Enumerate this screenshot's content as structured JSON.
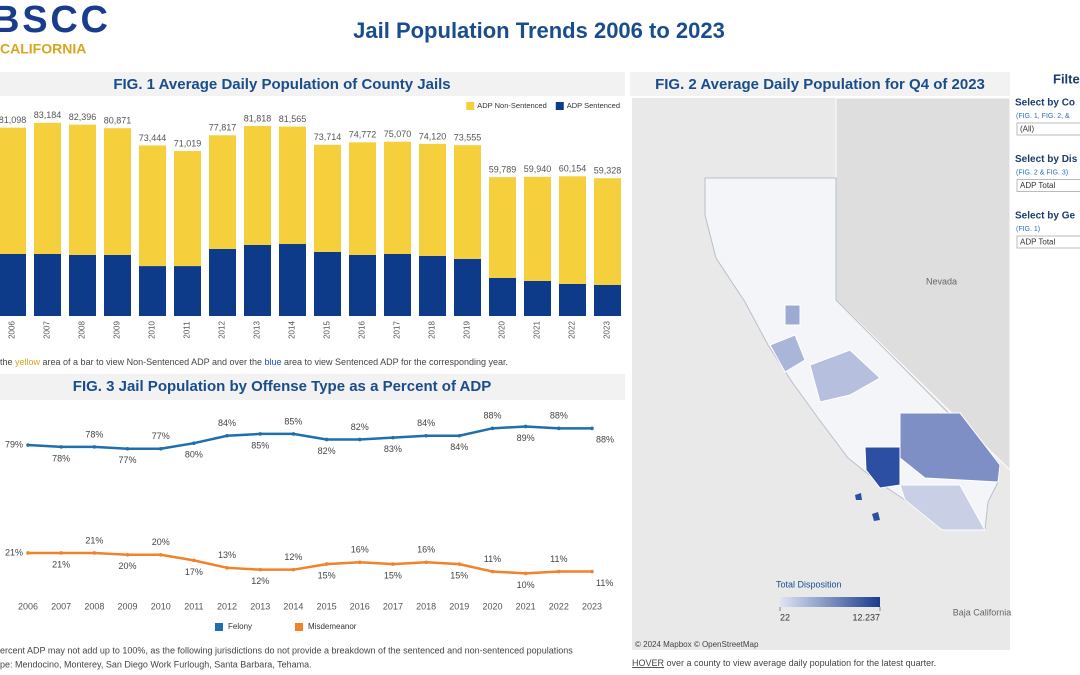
{
  "header": {
    "logo": "BSCC",
    "logo_sub": "CALIFORNIA",
    "title": "Jail Population Trends 2006 to 2023"
  },
  "chart_data": [
    {
      "type": "bar",
      "stacked": true,
      "title": "FIG. 1 Average Daily Population of County Jails",
      "categories": [
        "2006",
        "2007",
        "2008",
        "2009",
        "2010",
        "2011",
        "2012",
        "2013",
        "2014",
        "2015",
        "2016",
        "2017",
        "2018",
        "2019",
        "2020",
        "2021",
        "2022",
        "2023"
      ],
      "series": [
        {
          "name": "ADP Non-Sentenced",
          "color": "#f5cf3c",
          "values": [
            54398,
            56484,
            56096,
            54571,
            51944,
            49519,
            48917,
            51218,
            50565,
            46114,
            48472,
            48370,
            48220,
            48955,
            43389,
            44840,
            46354,
            45928
          ]
        },
        {
          "name": "ADP Sentenced",
          "color": "#0e3a8a",
          "values": [
            26700,
            26700,
            26300,
            26300,
            21500,
            21500,
            28900,
            30600,
            31000,
            27600,
            26300,
            26700,
            25900,
            24600,
            16400,
            15100,
            13800,
            13400
          ]
        }
      ],
      "totals": [
        81098,
        83184,
        82396,
        80871,
        73444,
        71019,
        77817,
        81818,
        81565,
        73714,
        74772,
        75070,
        74120,
        73555,
        59789,
        59940,
        60154,
        59328
      ],
      "total_labels": [
        "81,098",
        "83,184",
        "82,396",
        "80,871",
        "73,444",
        "71,019",
        "77,817",
        "81,818",
        "81,565",
        "73,714",
        "74,772",
        "75,070",
        "74,120",
        "73,555",
        "59,789",
        "59,940",
        "60,154",
        "59,328"
      ],
      "ylim": [
        0,
        90000
      ],
      "legend": "top-right",
      "note": [
        "the ",
        "yellow",
        " area of a bar to view Non-Sentenced ADP and over the ",
        "blue",
        " area to view Sentenced ADP for the corresponding year."
      ]
    },
    {
      "type": "map",
      "title": "FIG. 2 Average Daily Population for Q4 of 2023",
      "legend_title": "Total Disposition",
      "legend_range": [
        22,
        {
          "value": 12237,
          "label": "12.237"
        }
      ],
      "places": [
        "Nevada",
        "Baja California"
      ],
      "attribution": "© 2024 Mapbox © OpenStreetMap",
      "note": [
        "HOVER",
        " over a county to view average daily population for the latest quarter."
      ]
    },
    {
      "type": "line",
      "title": "FIG. 3 Jail Population by Offense Type as a Percent of ADP",
      "categories": [
        "2006",
        "2007",
        "2008",
        "2009",
        "2010",
        "2011",
        "2012",
        "2013",
        "2014",
        "2015",
        "2016",
        "2017",
        "2018",
        "2019",
        "2020",
        "2021",
        "2022",
        "2023"
      ],
      "series": [
        {
          "name": "Felony",
          "color": "#1f6fad",
          "values": [
            79,
            78,
            78,
            77,
            77,
            80,
            84,
            85,
            85,
            82,
            82,
            83,
            84,
            84,
            88,
            89,
            88,
            88
          ],
          "value_labels": [
            "79%",
            "78%",
            "78%",
            "77%",
            "77%",
            "80%",
            "84%",
            "85%",
            "85%",
            "82%",
            "82%",
            "83%",
            "84%",
            "84%",
            "88%",
            "89%",
            "88%",
            "88%"
          ]
        },
        {
          "name": "Misdemeanor",
          "color": "#f0822a",
          "values": [
            21,
            21,
            21,
            20,
            20,
            17,
            13,
            12,
            12,
            15,
            16,
            15,
            16,
            15,
            11,
            10,
            11,
            11
          ],
          "value_labels": [
            "21%",
            "21%",
            "21%",
            "20%",
            "20%",
            "17%",
            "13%",
            "12%",
            "12%",
            "15%",
            "16%",
            "15%",
            "16%",
            "15%",
            "11%",
            "10%",
            "11%",
            "11%"
          ]
        }
      ],
      "ylim": [
        0,
        100
      ],
      "legend": "bottom",
      "note": [
        "ercent ADP may not add up  to 100%, as the following jurisdictions do not provide a breakdown of the sentenced and non-sentenced populations",
        "pe: Mendocino, Monterey, San Diego Work Furlough, Santa Barbara, Tehama."
      ]
    }
  ],
  "filters": {
    "title": "Filte",
    "items": [
      {
        "label": "Select by Co",
        "sub": "(FIG. 1, FIG. 2, &",
        "value": "(All)"
      },
      {
        "label": "Select by Dis",
        "sub": "(FIG. 2 & FIG. 3)",
        "value": "ADP Total"
      },
      {
        "label": "Select by Ge",
        "sub": "(FIG. 1)",
        "value": "ADP Total"
      }
    ]
  }
}
